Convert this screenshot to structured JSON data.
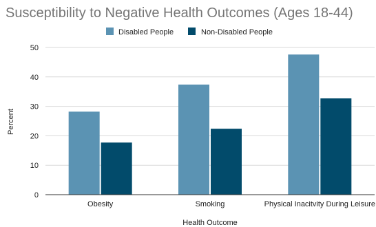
{
  "chart_data": {
    "type": "bar",
    "title": "Susceptibility to Negative Health Outcomes (Ages 18-44)",
    "xlabel": "Health Outcome",
    "ylabel": "Percent",
    "categories": [
      "Obesity",
      "Smoking",
      "Physical Inacitvity During Leisure"
    ],
    "series": [
      {
        "name": "Disabled People",
        "color": "#5b93b3",
        "values": [
          28.2,
          37.4,
          47.6
        ]
      },
      {
        "name": "Non-Disabled People",
        "color": "#024b6b",
        "values": [
          17.7,
          22.4,
          32.7
        ]
      }
    ],
    "ylim": [
      0,
      50
    ],
    "yticks": [
      "0",
      "10",
      "20",
      "30",
      "40",
      "50"
    ],
    "grid": true,
    "legend_position": "top-center"
  }
}
